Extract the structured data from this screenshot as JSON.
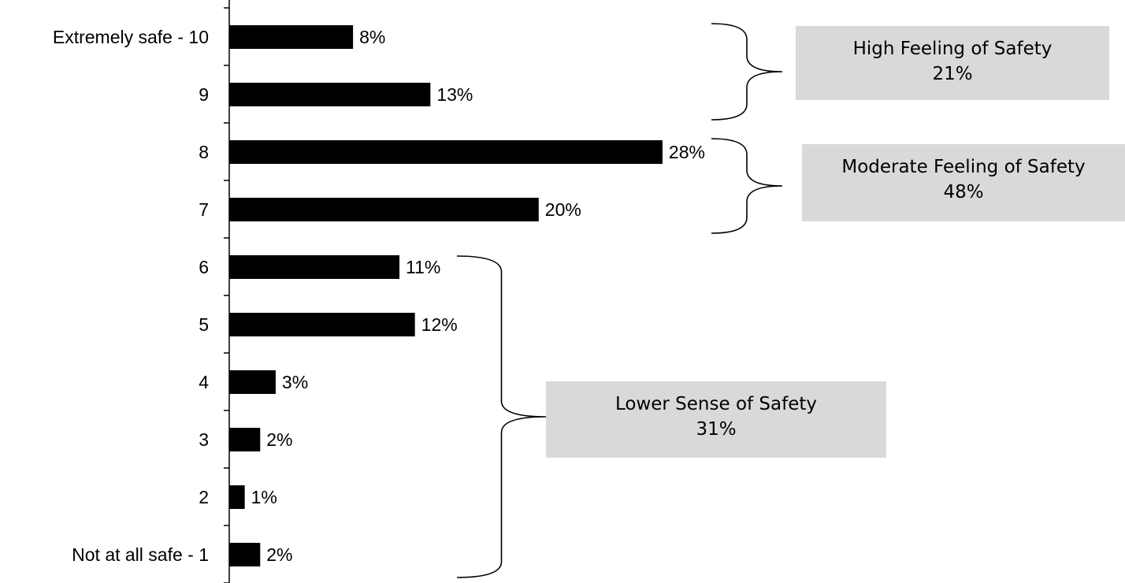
{
  "chart_data": {
    "type": "bar",
    "orientation": "horizontal",
    "categories": [
      "Extremely safe - 10",
      "9",
      "8",
      "7",
      "6",
      "5",
      "4",
      "3",
      "2",
      "Not at all safe - 1"
    ],
    "values": [
      8,
      13,
      28,
      20,
      11,
      12,
      3,
      2,
      1,
      2
    ],
    "value_labels": [
      "8%",
      "13%",
      "28%",
      "20%",
      "11%",
      "12%",
      "3%",
      "2%",
      "1%",
      "2%"
    ],
    "unit": "%",
    "xlim": [
      0,
      30
    ],
    "grid": false,
    "legend": "none",
    "bar_color": "#000000",
    "groups": [
      {
        "name": "High Feeling of Safety",
        "total": "21%",
        "categories": [
          "Extremely safe - 10",
          "9"
        ]
      },
      {
        "name": "Moderate Feeling of Safety",
        "total": "48%",
        "categories": [
          "8",
          "7"
        ]
      },
      {
        "name": "Lower Sense of Safety",
        "total": "31%",
        "categories": [
          "6",
          "5",
          "4",
          "3",
          "2",
          "Not at all safe - 1"
        ]
      }
    ],
    "group_box_color": "#d9d9d9"
  }
}
